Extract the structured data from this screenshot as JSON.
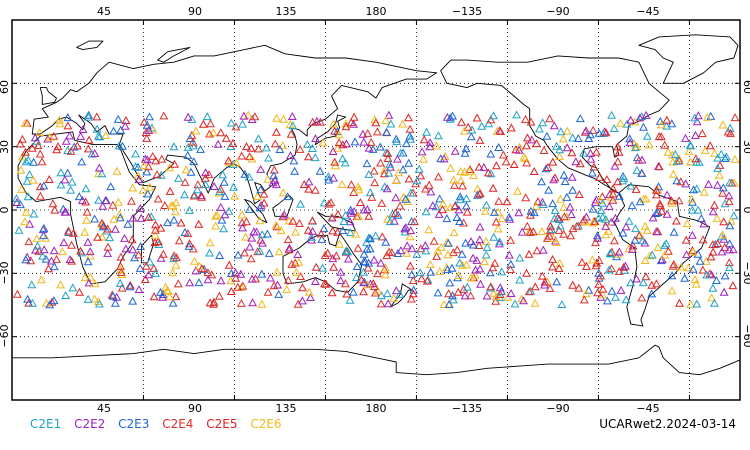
{
  "map": {
    "projection": "cylindrical equidistant",
    "center_longitude": 160,
    "longitude_range": [
      -20,
      340
    ],
    "latitude_range": [
      -90,
      90
    ],
    "top_axis_labels": [
      "45",
      "90",
      "135",
      "180",
      "−135",
      "−90",
      "−45"
    ],
    "bottom_axis_labels": [
      "45",
      "90",
      "135",
      "180",
      "−135",
      "−90",
      "−45"
    ],
    "left_axis_labels": [
      "60",
      "30",
      "0",
      "−30",
      "−60"
    ],
    "right_axis_labels": [
      "60",
      "30",
      "0",
      "−30",
      "−60"
    ],
    "gridlines": "dotted",
    "coastlines": true,
    "marker_shape": "open triangle",
    "observation_band_latitude": [
      -45,
      45
    ]
  },
  "legend": [
    {
      "label": "C2E1",
      "color": "#1fa3c8"
    },
    {
      "label": "C2E2",
      "color": "#a020c0"
    },
    {
      "label": "C2E3",
      "color": "#1c66d6"
    },
    {
      "label": "C2E4",
      "color": "#e0302a"
    },
    {
      "label": "C2E5",
      "color": "#e02020"
    },
    {
      "label": "C2E6",
      "color": "#f2b81a"
    }
  ],
  "product_label": "UCARwet2.2024-03-14"
}
